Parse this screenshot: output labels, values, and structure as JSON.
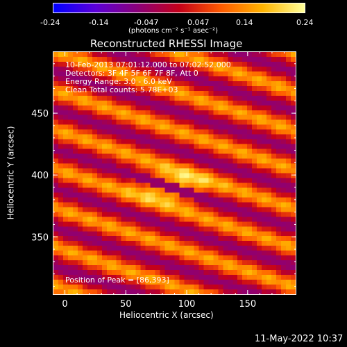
{
  "colorbar": {
    "ticks": [
      "-0.24",
      "-0.14",
      "-0.047",
      "0.047",
      "0.14",
      "0.24"
    ],
    "unit_label": "(photons cm⁻² s⁻¹ asec⁻²)",
    "colors": [
      "#0000ff",
      "#5b00d8",
      "#8a007a",
      "#c4001a",
      "#ff5a00",
      "#ffb400",
      "#ffff9a"
    ]
  },
  "chart_data": {
    "type": "heatmap",
    "title": "Reconstructed RHESSI Image",
    "xlabel": "Heliocentric X (arcsec)",
    "ylabel": "Heliocentric Y (arcsec)",
    "xlim": [
      -10,
      190
    ],
    "ylim": [
      303,
      500
    ],
    "xticks": [
      0,
      50,
      100,
      150
    ],
    "yticks": [
      350,
      400,
      450
    ],
    "peak": [
      86,
      393
    ],
    "annotations": [
      "10-Feb-2013 07:01:12.000 to 07:02:52.000",
      "Detectors: 3F 4F 5F 6F 7F 8F, Att 0",
      "Energy Range: 3.0 - 6.0 keV",
      "Clean    Total counts: 5.78E+03",
      "Position of Peak = [86,393]"
    ]
  },
  "footer": {
    "timestamp": "11-May-2022 10:37"
  }
}
